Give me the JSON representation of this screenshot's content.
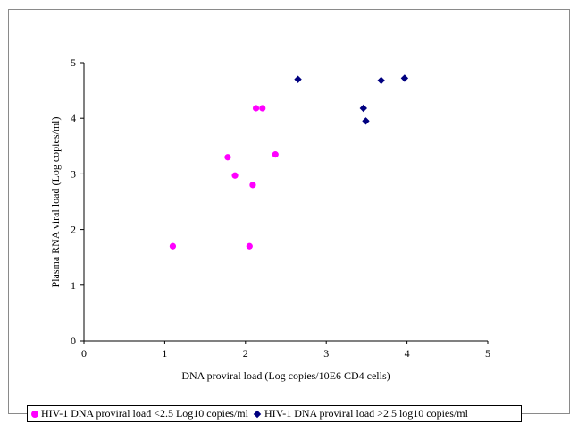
{
  "chart_data": {
    "type": "scatter",
    "title": "",
    "xlabel": "DNA proviral load (Log copies/10E6 CD4 cells)",
    "ylabel": "Plasma RNA viral load (Log copies/ml)",
    "xlim": [
      0,
      5
    ],
    "ylim": [
      0,
      5
    ],
    "x_ticks": [
      "0",
      "1",
      "2",
      "3",
      "4",
      "5"
    ],
    "y_ticks": [
      "0",
      "1",
      "2",
      "3",
      "4",
      "5"
    ],
    "grid": false,
    "legend_position": "bottom",
    "series": [
      {
        "name": "HIV-1 DNA proviral load <2.5 Log10 copies/ml",
        "marker": "circle",
        "color": "#ff00ff",
        "points": [
          {
            "x": 1.1,
            "y": 1.7
          },
          {
            "x": 1.78,
            "y": 3.3
          },
          {
            "x": 1.87,
            "y": 2.97
          },
          {
            "x": 2.05,
            "y": 1.7
          },
          {
            "x": 2.09,
            "y": 2.8
          },
          {
            "x": 2.13,
            "y": 4.18
          },
          {
            "x": 2.21,
            "y": 4.18
          },
          {
            "x": 2.37,
            "y": 3.35
          }
        ]
      },
      {
        "name": "HIV-1 DNA proviral load >2.5 log10 copies/ml",
        "marker": "diamond",
        "color": "#000080",
        "points": [
          {
            "x": 2.65,
            "y": 4.7
          },
          {
            "x": 3.46,
            "y": 4.18
          },
          {
            "x": 3.49,
            "y": 3.95
          },
          {
            "x": 3.68,
            "y": 4.68
          },
          {
            "x": 3.97,
            "y": 4.72
          }
        ]
      }
    ]
  }
}
